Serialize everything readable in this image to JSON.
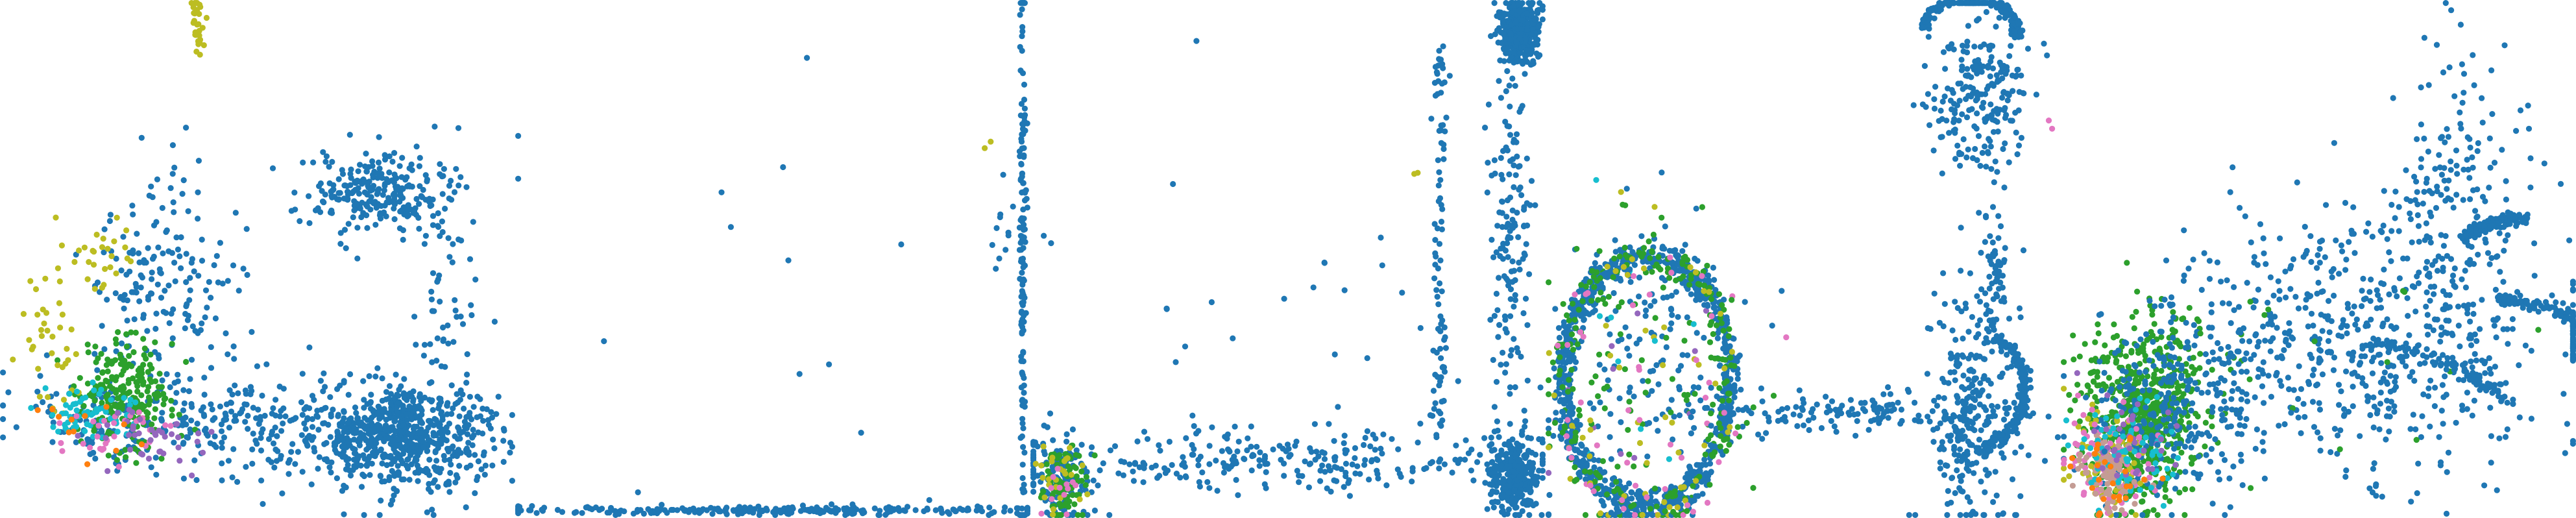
{
  "chart_data": {
    "type": "scatter",
    "title": "",
    "grid": false,
    "legend": "none",
    "axes_visible": false,
    "point_colors": {
      "blue": "#1f77b4",
      "green": "#2ca02c",
      "olive": "#bcbd22",
      "pink": "#e377c2",
      "purple": "#9467bd",
      "cyan": "#17becf",
      "orange": "#ff7f0e",
      "tan": "#c49c94"
    },
    "panels": [
      {
        "xlim": [
          0,
          1
        ],
        "ylim": [
          0,
          1
        ],
        "clusters": [
          {
            "color": "blue",
            "n": 700,
            "cx": 0.78,
            "cy": 0.15,
            "sx": 0.09,
            "sy": 0.05
          },
          {
            "color": "blue",
            "n": 260,
            "cx": 0.74,
            "cy": 0.63,
            "sx": 0.07,
            "sy": 0.04
          },
          {
            "color": "blue",
            "n": 180,
            "cx": 0.32,
            "cy": 0.45,
            "sx": 0.08,
            "sy": 0.11
          },
          {
            "color": "blue",
            "n": 200,
            "cx": 0.48,
            "cy": 0.18,
            "sx": 0.14,
            "sy": 0.05
          },
          {
            "color": "blue",
            "n": 90,
            "cx": 0.18,
            "cy": 0.18,
            "sx": 0.12,
            "sy": 0.04
          },
          {
            "color": "blue",
            "n": 60,
            "cx": 0.87,
            "cy": 0.45,
            "sx": 0.03,
            "sy": 0.12
          },
          {
            "color": "green",
            "n": 220,
            "cx": 0.24,
            "cy": 0.23,
            "sx": 0.05,
            "sy": 0.05
          },
          {
            "color": "olive",
            "n": 30,
            "cx": 0.38,
            "cy": 0.96,
            "sx": 0.006,
            "sy": 0.03
          },
          {
            "color": "olive",
            "n": 40,
            "cx": 0.09,
            "cy": 0.35,
            "sx": 0.03,
            "sy": 0.08
          },
          {
            "color": "olive",
            "n": 25,
            "cx": 0.2,
            "cy": 0.5,
            "sx": 0.03,
            "sy": 0.04
          },
          {
            "color": "cyan",
            "n": 60,
            "cx": 0.16,
            "cy": 0.2,
            "sx": 0.05,
            "sy": 0.03
          },
          {
            "color": "pink",
            "n": 30,
            "cx": 0.2,
            "cy": 0.16,
            "sx": 0.07,
            "sy": 0.03
          },
          {
            "color": "purple",
            "n": 40,
            "cx": 0.28,
            "cy": 0.15,
            "sx": 0.06,
            "sy": 0.03
          },
          {
            "color": "orange",
            "n": 12,
            "cx": 0.15,
            "cy": 0.17,
            "sx": 0.05,
            "sy": 0.03
          }
        ]
      },
      {
        "xlim": [
          0,
          1
        ],
        "ylim": [
          0,
          1
        ],
        "clusters": [
          {
            "color": "blue",
            "n": 260,
            "cx": 0.5,
            "cy": 0.005,
            "sx": 0.28,
            "sy": 0.004
          },
          {
            "color": "blue",
            "n": 150,
            "cx": 0.995,
            "cy": 0.5,
            "sx": 0.003,
            "sy": 0.3
          },
          {
            "color": "blue",
            "n": 10,
            "cx": 0.96,
            "cy": 0.55,
            "sx": 0.02,
            "sy": 0.05
          },
          {
            "color": "blue",
            "n": 18,
            "cx": 0.5,
            "cy": 0.3,
            "sx": 0.3,
            "sy": 0.25
          },
          {
            "color": "olive",
            "n": 2,
            "cx": 0.92,
            "cy": 0.73,
            "sx": 0.01,
            "sy": 0.01
          }
        ]
      },
      {
        "xlim": [
          0,
          1
        ],
        "ylim": [
          0,
          1
        ],
        "clusters": [
          {
            "color": "blue",
            "n": 380,
            "cx": 0.96,
            "cy": 0.95,
            "sx": 0.02,
            "sy": 0.03
          },
          {
            "color": "blue",
            "n": 320,
            "cx": 0.95,
            "cy": 0.07,
            "sx": 0.025,
            "sy": 0.04
          },
          {
            "color": "blue",
            "n": 160,
            "cx": 0.94,
            "cy": 0.55,
            "sx": 0.02,
            "sy": 0.2
          },
          {
            "color": "blue",
            "n": 280,
            "cx": 0.45,
            "cy": 0.1,
            "sx": 0.28,
            "sy": 0.03
          },
          {
            "color": "blue",
            "n": 30,
            "cx": 0.55,
            "cy": 0.45,
            "sx": 0.25,
            "sy": 0.2
          },
          {
            "color": "blue",
            "n": 120,
            "cx": 0.05,
            "cy": 0.06,
            "sx": 0.025,
            "sy": 0.04
          },
          {
            "color": "green",
            "n": 80,
            "cx": 0.055,
            "cy": 0.06,
            "sx": 0.025,
            "sy": 0.04
          },
          {
            "color": "olive",
            "n": 25,
            "cx": 0.05,
            "cy": 0.07,
            "sx": 0.025,
            "sy": 0.04
          },
          {
            "color": "pink",
            "n": 12,
            "cx": 0.045,
            "cy": 0.05,
            "sx": 0.02,
            "sy": 0.03
          },
          {
            "color": "olive",
            "n": 2,
            "cx": 0.75,
            "cy": 0.67,
            "sx": 0.01,
            "sy": 0.01
          }
        ],
        "verticals": [
          {
            "color": "blue",
            "n": 90,
            "x": 0.8,
            "y0": 0.15,
            "y1": 0.95
          }
        ]
      },
      {
        "xlim": [
          0,
          1
        ],
        "ylim": [
          0,
          1
        ],
        "rings": [
          {
            "color": "blue",
            "n": 850,
            "cx": 0.19,
            "cy": 0.26,
            "r": 0.165,
            "w": 0.01
          },
          {
            "color": "green",
            "n": 200,
            "cx": 0.19,
            "cy": 0.26,
            "r": 0.165,
            "w": 0.014
          },
          {
            "color": "olive",
            "n": 40,
            "cx": 0.19,
            "cy": 0.26,
            "r": 0.165,
            "w": 0.02
          },
          {
            "color": "pink",
            "n": 30,
            "cx": 0.19,
            "cy": 0.26,
            "r": 0.16,
            "w": 0.02
          }
        ],
        "arcs": [
          {
            "color": "blue",
            "n": 220,
            "cx": 0.83,
            "cy": 0.92,
            "r": 0.1,
            "a0": 10,
            "a1": 160
          },
          {
            "color": "blue",
            "n": 180,
            "cx": 0.82,
            "cy": 0.24,
            "r": 0.12,
            "a0": -80,
            "a1": 60
          }
        ],
        "clusters": [
          {
            "color": "blue",
            "n": 160,
            "cx": 0.19,
            "cy": 0.26,
            "sx": 0.09,
            "sy": 0.18
          },
          {
            "color": "green",
            "n": 70,
            "cx": 0.19,
            "cy": 0.26,
            "sx": 0.1,
            "sy": 0.18
          },
          {
            "color": "olive",
            "n": 25,
            "cx": 0.19,
            "cy": 0.26,
            "sx": 0.1,
            "sy": 0.18
          },
          {
            "color": "pink",
            "n": 25,
            "cx": 0.19,
            "cy": 0.24,
            "sx": 0.1,
            "sy": 0.16
          },
          {
            "color": "purple",
            "n": 12,
            "cx": 0.19,
            "cy": 0.26,
            "sx": 0.1,
            "sy": 0.16
          },
          {
            "color": "cyan",
            "n": 10,
            "cx": 0.19,
            "cy": 0.28,
            "sx": 0.1,
            "sy": 0.16
          },
          {
            "color": "blue",
            "n": 140,
            "cx": 0.58,
            "cy": 0.2,
            "sx": 0.17,
            "sy": 0.02
          },
          {
            "color": "blue",
            "n": 230,
            "cx": 0.84,
            "cy": 0.2,
            "sx": 0.05,
            "sy": 0.12
          },
          {
            "color": "blue",
            "n": 220,
            "cx": 0.84,
            "cy": 0.82,
            "sx": 0.05,
            "sy": 0.08
          },
          {
            "color": "blue",
            "n": 55,
            "cx": 0.88,
            "cy": 0.48,
            "sx": 0.01,
            "sy": 0.08
          },
          {
            "color": "blue",
            "n": 40,
            "cx": 0.81,
            "cy": 0.13,
            "sx": 0.015,
            "sy": 0.07
          },
          {
            "color": "pink",
            "n": 2,
            "cx": 0.99,
            "cy": 0.76,
            "sx": 0.01,
            "sy": 0.01
          }
        ]
      },
      {
        "xlim": [
          0,
          1
        ],
        "ylim": [
          0,
          1
        ],
        "arcs": [
          {
            "color": "blue",
            "n": 150,
            "cx": 0.84,
            "cy": 0.02,
            "r": 0.4,
            "a0": 45,
            "a1": 88
          },
          {
            "color": "blue",
            "n": 120,
            "cx": 0.9,
            "cy": 0.4,
            "r": 0.18,
            "a0": 85,
            "a1": 130
          },
          {
            "color": "blue",
            "n": 100,
            "cx": 0.5,
            "cy": -0.25,
            "r": 0.6,
            "a0": 50,
            "a1": 80
          }
        ],
        "clusters": [
          {
            "color": "green",
            "n": 620,
            "cx": 0.15,
            "cy": 0.2,
            "sx": 0.06,
            "sy": 0.09
          },
          {
            "color": "blue",
            "n": 200,
            "cx": 0.17,
            "cy": 0.2,
            "sx": 0.07,
            "sy": 0.09
          },
          {
            "color": "olive",
            "n": 80,
            "cx": 0.09,
            "cy": 0.1,
            "sx": 0.04,
            "sy": 0.05
          },
          {
            "color": "pink",
            "n": 80,
            "cx": 0.09,
            "cy": 0.11,
            "sx": 0.04,
            "sy": 0.05
          },
          {
            "color": "tan",
            "n": 80,
            "cx": 0.08,
            "cy": 0.08,
            "sx": 0.03,
            "sy": 0.04
          },
          {
            "color": "cyan",
            "n": 70,
            "cx": 0.12,
            "cy": 0.12,
            "sx": 0.05,
            "sy": 0.05
          },
          {
            "color": "purple",
            "n": 35,
            "cx": 0.12,
            "cy": 0.14,
            "sx": 0.06,
            "sy": 0.05
          },
          {
            "color": "orange",
            "n": 25,
            "cx": 0.09,
            "cy": 0.07,
            "sx": 0.04,
            "sy": 0.04
          },
          {
            "color": "blue",
            "n": 600,
            "cx": 0.58,
            "cy": 0.33,
            "sx": 0.2,
            "sy": 0.14
          },
          {
            "color": "blue",
            "n": 180,
            "cx": 0.78,
            "cy": 0.6,
            "sx": 0.07,
            "sy": 0.16
          },
          {
            "color": "green",
            "n": 18,
            "cx": 0.48,
            "cy": 0.3,
            "sx": 0.15,
            "sy": 0.1
          },
          {
            "color": "blue",
            "n": 60,
            "cx": 0.3,
            "cy": 0.22,
            "sx": 0.05,
            "sy": 0.09
          }
        ]
      }
    ]
  }
}
